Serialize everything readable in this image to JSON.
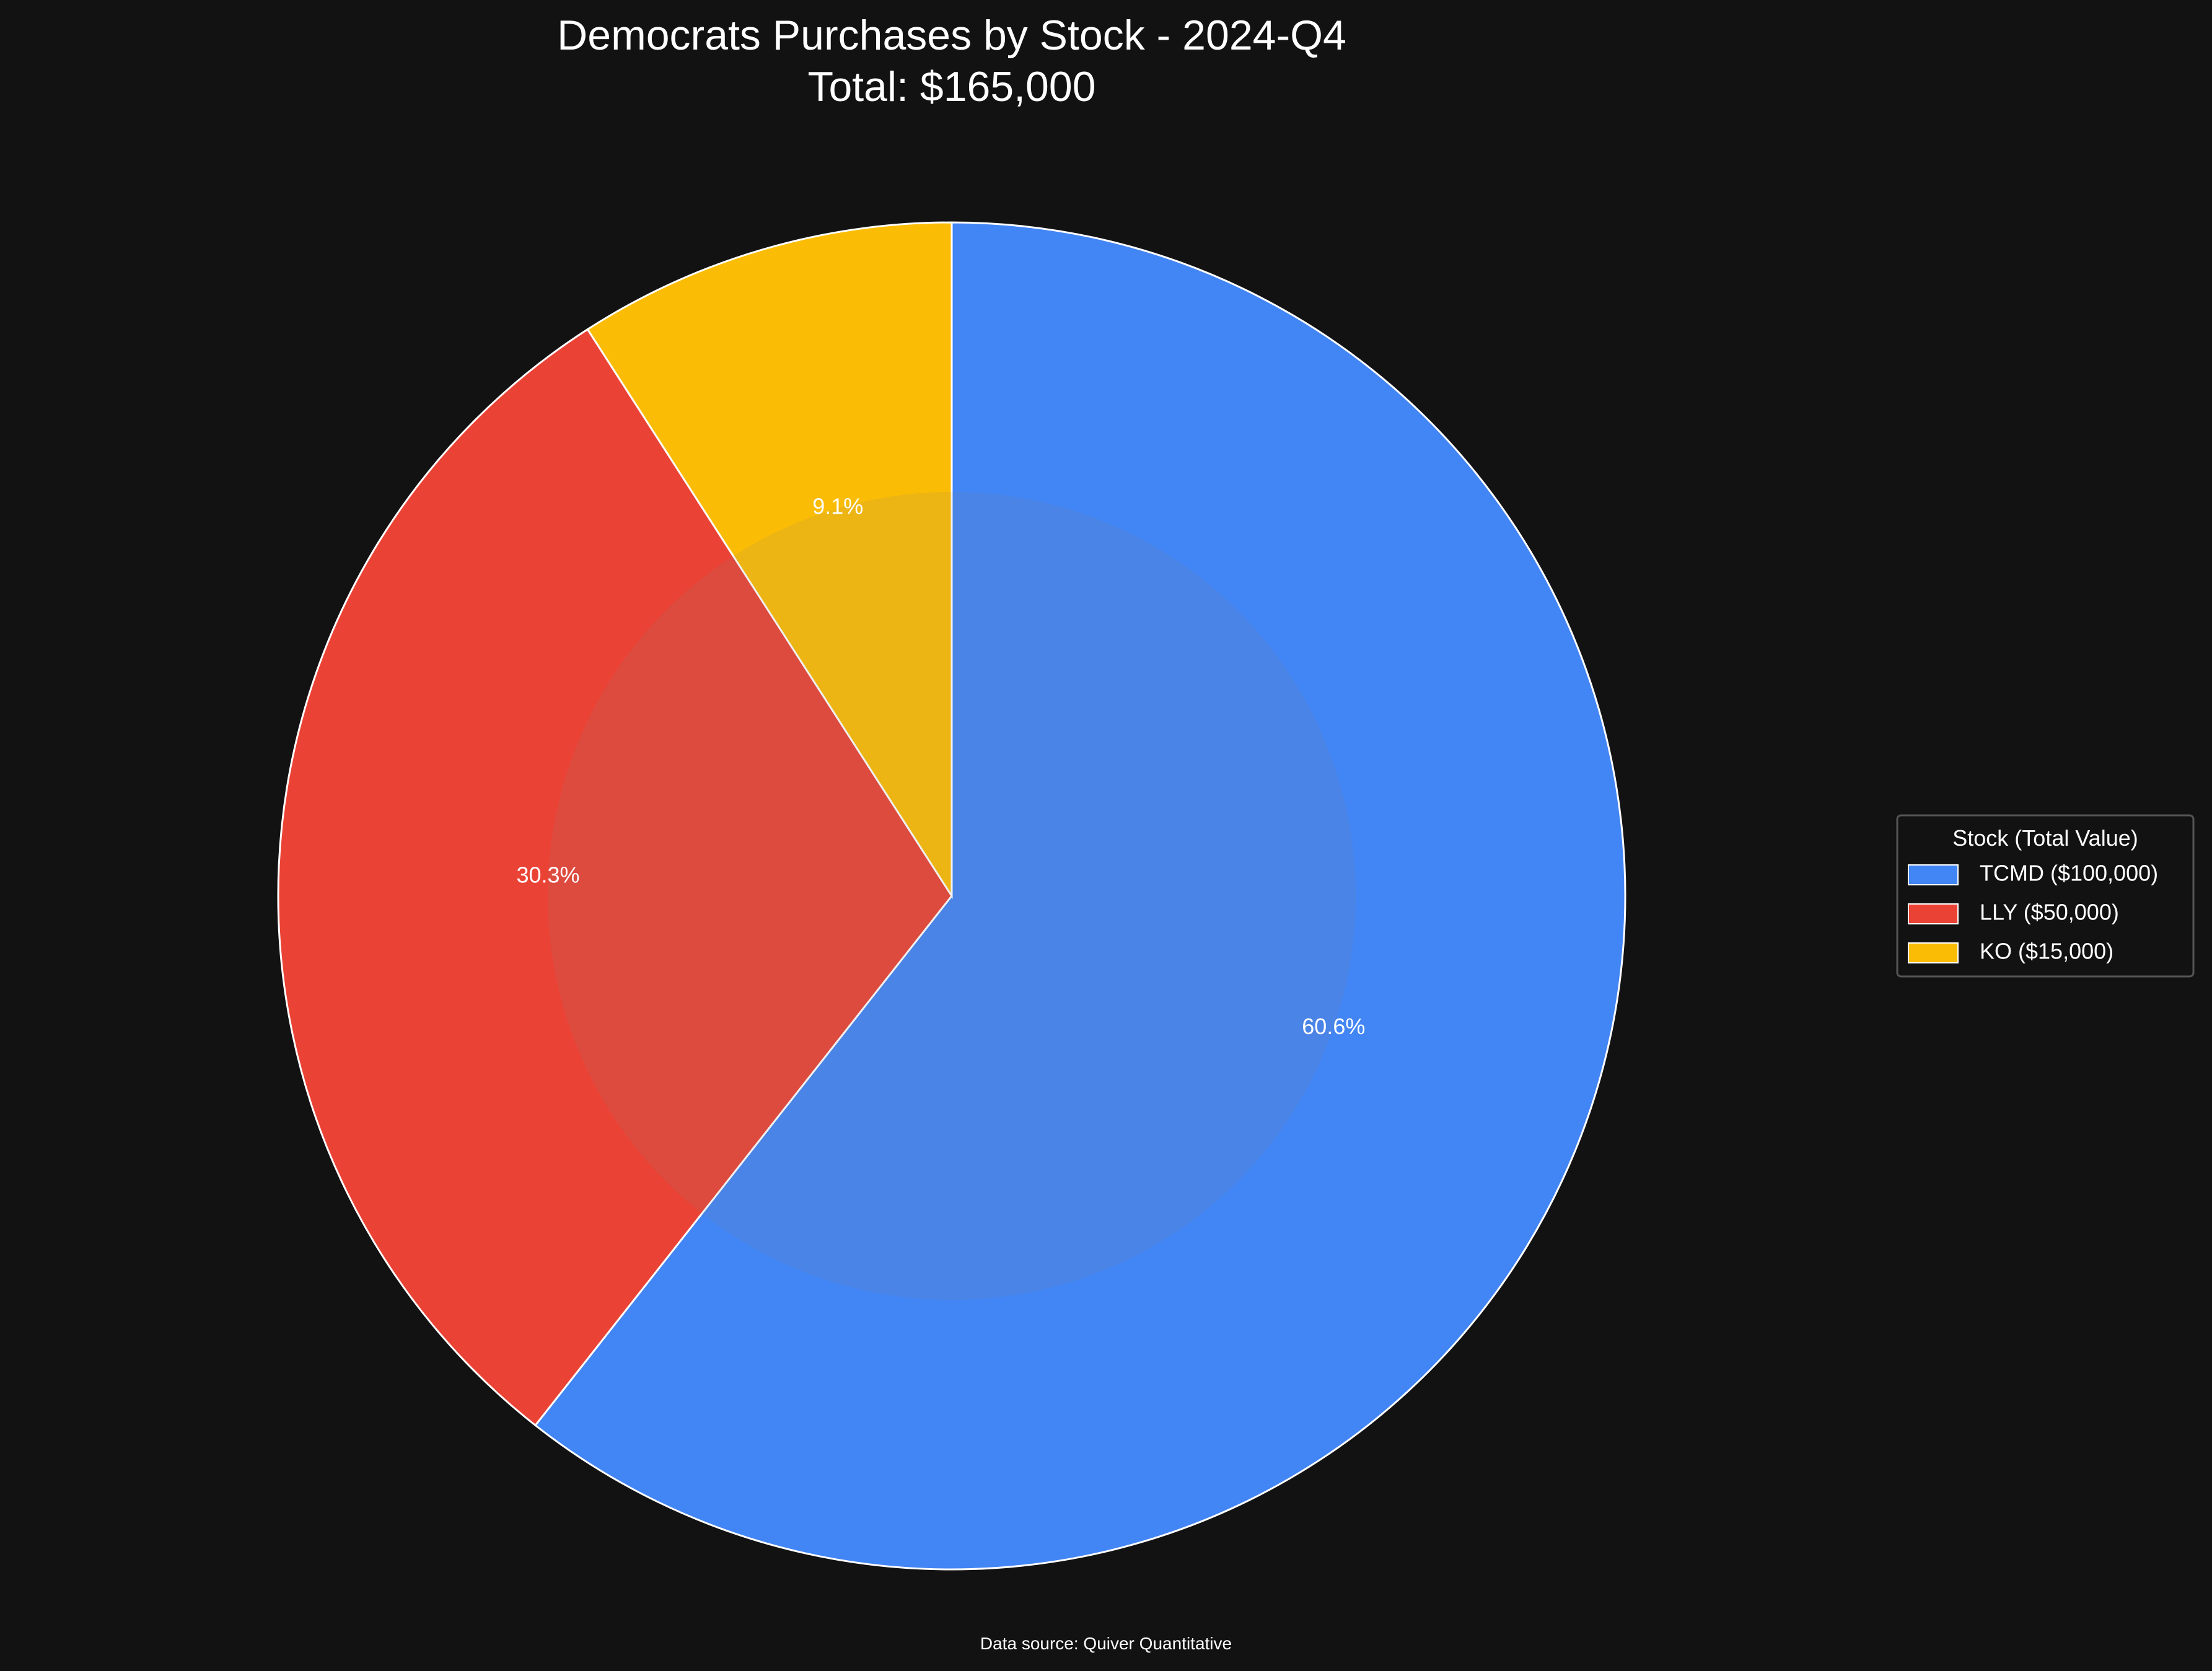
{
  "chart_data": {
    "type": "pie",
    "title": "Democrats Purchases by Stock - 2024-Q4",
    "subtitle": "Total: $165,000",
    "start_angle_deg": 90,
    "direction": "clockwise",
    "slices": [
      {
        "label": "TCMD",
        "value": 100000,
        "percent_label": "60.6%",
        "legend_label": "TCMD ($100,000)",
        "color": "#4285F4"
      },
      {
        "label": "LLY",
        "value": 50000,
        "percent_label": "30.3%",
        "legend_label": "LLY ($50,000)",
        "color": "#EA4335"
      },
      {
        "label": "KO",
        "value": 15000,
        "percent_label": "9.1%",
        "legend_label": "KO ($15,000)",
        "color": "#FBBC05"
      }
    ],
    "legend": {
      "title": "Stock (Total Value)",
      "placement": "right"
    },
    "edge_color": "#ffffff",
    "background": "#121212",
    "footer": "Data source: Quiver Quantitative"
  }
}
